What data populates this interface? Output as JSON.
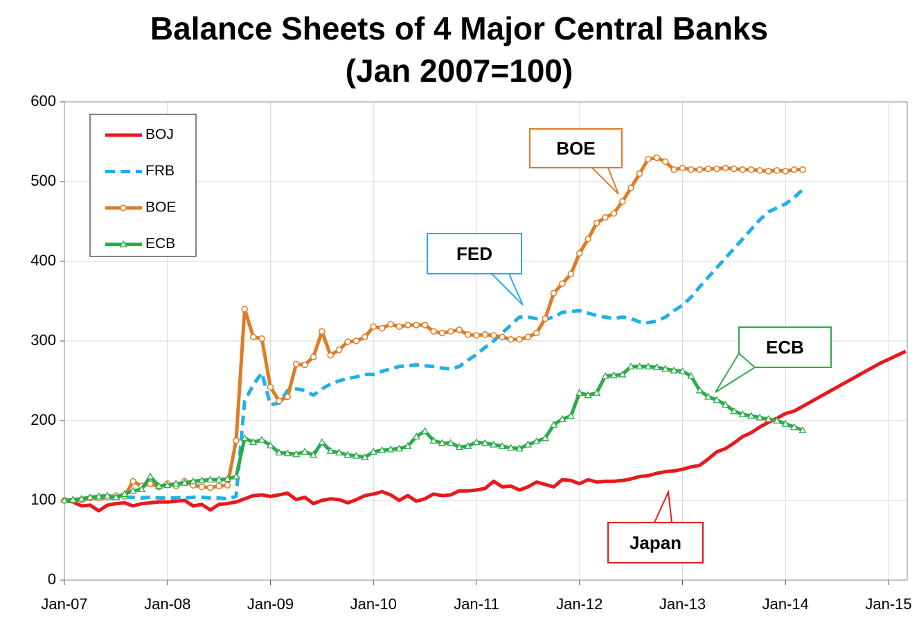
{
  "chart_data": {
    "type": "line",
    "title": "Balance Sheets of 4 Major Central Banks",
    "subtitle": "(Jan 2007=100)",
    "categories": [
      "Jan-07",
      null,
      null,
      null,
      null,
      null,
      null,
      null,
      null,
      null,
      null,
      null,
      "Jan-08",
      null,
      null,
      null,
      null,
      null,
      null,
      null,
      null,
      null,
      null,
      null,
      "Jan-09",
      null,
      null,
      null,
      null,
      null,
      null,
      null,
      null,
      null,
      null,
      null,
      "Jan-10",
      null,
      null,
      null,
      null,
      null,
      null,
      null,
      null,
      null,
      null,
      null,
      "Jan-11",
      null,
      null,
      null,
      null,
      null,
      null,
      null,
      null,
      null,
      null,
      null,
      "Jan-12",
      null,
      null,
      null,
      null,
      null,
      null,
      null,
      null,
      null,
      null,
      null,
      "Jan-13",
      null,
      null,
      null,
      null,
      null,
      null,
      null,
      null,
      null,
      null,
      null,
      "Jan-14",
      null,
      null,
      null,
      null,
      null,
      null,
      null,
      null,
      null,
      null,
      null,
      "Jan-15",
      null,
      null
    ],
    "ylim": [
      0,
      600
    ],
    "yticks": [
      0,
      100,
      200,
      300,
      400,
      500,
      600
    ],
    "grid": true,
    "series": [
      {
        "name": "BOJ",
        "color": "#e8191c",
        "style": "solid",
        "marker": "none",
        "values": [
          100,
          98,
          93,
          94,
          87,
          94,
          96,
          97,
          93,
          96,
          97,
          98,
          98,
          99,
          100,
          93,
          95,
          88,
          95,
          96,
          98,
          102,
          106,
          107,
          105,
          107,
          109,
          101,
          104,
          96,
          100,
          102,
          101,
          97,
          101,
          106,
          108,
          111,
          107,
          100,
          106,
          99,
          102,
          108,
          106,
          107,
          112,
          112,
          113,
          115,
          124,
          117,
          118,
          113,
          117,
          123,
          120,
          117,
          126,
          125,
          121,
          126,
          123,
          124,
          124,
          125,
          127,
          130,
          131,
          134,
          136,
          137,
          139,
          142,
          144,
          152,
          161,
          165,
          172,
          180,
          185,
          192,
          198,
          203,
          209,
          212,
          218,
          224,
          230,
          236,
          242,
          248,
          254,
          260,
          266,
          272,
          277,
          282,
          287
        ]
      },
      {
        "name": "FRB",
        "color": "#1fb0e8",
        "style": "dashed",
        "marker": "none",
        "values": [
          100,
          101,
          101,
          102,
          102,
          103,
          103,
          104,
          104,
          103,
          104,
          103,
          103,
          103,
          103,
          104,
          104,
          103,
          103,
          102,
          105,
          225,
          245,
          260,
          220,
          222,
          238,
          240,
          238,
          232,
          240,
          246,
          250,
          253,
          255,
          258,
          258,
          262,
          265,
          268,
          269,
          270,
          269,
          268,
          266,
          265,
          268,
          276,
          283,
          292,
          300,
          310,
          320,
          330,
          330,
          328,
          327,
          330,
          336,
          337,
          338,
          335,
          332,
          330,
          328,
          330,
          328,
          324,
          323,
          325,
          330,
          338,
          345,
          355,
          368,
          380,
          392,
          404,
          416,
          428,
          440,
          452,
          462,
          467,
          472,
          480,
          490,
          null,
          null,
          null,
          null,
          null,
          null,
          null,
          null,
          null,
          null,
          null,
          null
        ]
      },
      {
        "name": "BOE",
        "color": "#e07a23",
        "style": "solid",
        "marker": "circle",
        "values": [
          100,
          100,
          101,
          103,
          103,
          104,
          106,
          105,
          124,
          118,
          121,
          117,
          121,
          118,
          124,
          119,
          117,
          116,
          118,
          119,
          175,
          340,
          305,
          303,
          242,
          225,
          230,
          271,
          270,
          280,
          312,
          282,
          289,
          299,
          300,
          305,
          318,
          316,
          321,
          318,
          320,
          320,
          320,
          312,
          310,
          312,
          314,
          308,
          307,
          308,
          307,
          305,
          302,
          302,
          305,
          310,
          328,
          360,
          372,
          384,
          410,
          428,
          448,
          455,
          460,
          475,
          492,
          510,
          528,
          530,
          525,
          515,
          517,
          515,
          515,
          516,
          516,
          517,
          516,
          515,
          515,
          514,
          513,
          514,
          513,
          515,
          515,
          null,
          null,
          null,
          null,
          null,
          null,
          null,
          null,
          null,
          null,
          null,
          null
        ]
      },
      {
        "name": "ECB",
        "color": "#2bab4a",
        "style": "solid",
        "marker": "triangle",
        "values": [
          100,
          101,
          102,
          104,
          105,
          106,
          104,
          108,
          112,
          114,
          130,
          118,
          119,
          121,
          122,
          124,
          125,
          126,
          126,
          127,
          130,
          178,
          173,
          176,
          169,
          160,
          159,
          158,
          161,
          157,
          173,
          162,
          160,
          157,
          156,
          154,
          161,
          163,
          164,
          165,
          168,
          180,
          187,
          175,
          172,
          172,
          167,
          168,
          173,
          172,
          170,
          168,
          166,
          165,
          170,
          174,
          178,
          195,
          202,
          206,
          235,
          232,
          235,
          256,
          257,
          258,
          268,
          268,
          268,
          267,
          265,
          263,
          262,
          256,
          238,
          230,
          226,
          220,
          212,
          208,
          206,
          204,
          202,
          200,
          196,
          192,
          188,
          null,
          null,
          null,
          null,
          null,
          null,
          null,
          null,
          null,
          null,
          null,
          null
        ]
      }
    ],
    "annotations": [
      {
        "text": "BOE"
      },
      {
        "text": "FED"
      },
      {
        "text": "ECB"
      },
      {
        "text": "Japan"
      }
    ]
  }
}
